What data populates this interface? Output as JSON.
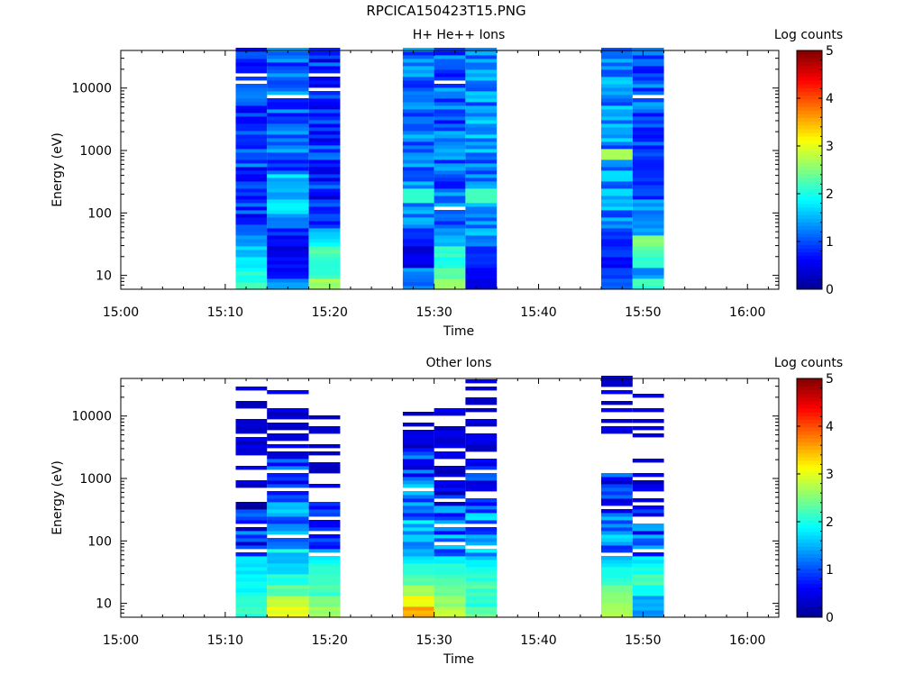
{
  "figure_title": "RPCICA150423T15.PNG",
  "colors": {
    "jet": [
      "#00008f",
      "#0000ff",
      "#0080ff",
      "#00ffff",
      "#80ff80",
      "#ffff00",
      "#ff8000",
      "#ff0000",
      "#800000"
    ]
  },
  "chart_data": [
    {
      "type": "heatmap",
      "title": "H+ He++ Ions",
      "xlabel": "Time",
      "ylabel": "Energy (eV)",
      "y_scale": "log",
      "ylim": [
        6,
        40000
      ],
      "xlim": [
        "15:00",
        "16:03"
      ],
      "x_ticks": [
        "15:00",
        "15:10",
        "15:20",
        "15:30",
        "15:40",
        "15:50",
        "16:00"
      ],
      "y_ticks": [
        "10",
        "100",
        "1000",
        "10000"
      ],
      "colorbar": {
        "label": "Log counts",
        "range": [
          0,
          5
        ],
        "ticks": [
          "0",
          "1",
          "2",
          "3",
          "4",
          "5"
        ]
      },
      "columns": [
        {
          "start": "15:11",
          "end": "15:14",
          "low": 0.9,
          "mid": 0.9,
          "bottom": [
            2.1,
            2.0,
            1.8,
            1.6,
            1.4,
            1.2
          ],
          "gaps": [
            12000,
            17000
          ]
        },
        {
          "start": "15:14",
          "end": "15:18",
          "low": 0.8,
          "mid": 1.1,
          "bottom": [
            1.3,
            0.7,
            0.6,
            0.5,
            0.6,
            0.8
          ],
          "gaps": [
            7500
          ]
        },
        {
          "start": "15:18",
          "end": "15:21",
          "low": 0.9,
          "mid": 0.8,
          "bottom": [
            2.6,
            2.1,
            2.0,
            2.2,
            1.8,
            1.5
          ],
          "gaps": [
            10000,
            16500,
            34000
          ]
        },
        {
          "start": "15:27",
          "end": "15:30",
          "low": 0.8,
          "mid": 1.2,
          "bottom": [
            1.2,
            1.3,
            0.5,
            0.4,
            0.8,
            0.9
          ],
          "gaps": [
            50
          ]
        },
        {
          "start": "15:30",
          "end": "15:33",
          "low": 1.0,
          "mid": 1.1,
          "bottom": [
            2.7,
            2.4,
            1.9,
            2.2,
            1.6,
            1.4
          ],
          "gaps": [
            13000,
            120
          ]
        },
        {
          "start": "15:33",
          "end": "15:36",
          "low": 0.9,
          "mid": 1.3,
          "bottom": [
            0.6,
            0.7,
            0.9,
            0.8,
            1.2,
            1.6
          ],
          "gaps": []
        },
        {
          "start": "15:46",
          "end": "15:49",
          "low": 1.1,
          "mid": 1.3,
          "bottom": [
            1.1,
            1.0,
            0.7,
            0.8,
            0.8,
            0.9
          ],
          "gaps": []
        },
        {
          "start": "15:49",
          "end": "15:52",
          "low": 0.8,
          "mid": 1.1,
          "bottom": [
            2.1,
            1.3,
            2.0,
            2.3,
            2.5,
            1.4
          ],
          "gaps": [
            7500
          ]
        }
      ]
    },
    {
      "type": "heatmap",
      "title": "Other Ions",
      "xlabel": "Time",
      "ylabel": "Energy (eV)",
      "y_scale": "log",
      "ylim": [
        6,
        40000
      ],
      "xlim": [
        "15:00",
        "16:03"
      ],
      "x_ticks": [
        "15:00",
        "15:10",
        "15:20",
        "15:30",
        "15:40",
        "15:50",
        "16:00"
      ],
      "y_ticks": [
        "10",
        "100",
        "1000",
        "10000"
      ],
      "colorbar": {
        "label": "Log counts",
        "range": [
          0,
          5
        ],
        "ticks": [
          "0",
          "1",
          "2",
          "3",
          "4",
          "5"
        ]
      },
      "columns": [
        {
          "start": "15:11",
          "end": "15:14",
          "top": 30000,
          "dense": 400,
          "low": 0.3,
          "bottom": [
            2.1,
            2.2,
            1.9,
            1.9,
            1.8,
            1.7,
            1.4
          ]
        },
        {
          "start": "15:14",
          "end": "15:18",
          "top": 25000,
          "dense": 2500,
          "low": 0.5,
          "bottom": [
            3.0,
            2.8,
            2.3,
            2.0,
            1.7,
            1.5,
            1.2
          ]
        },
        {
          "start": "15:18",
          "end": "15:21",
          "top": 15000,
          "dense": 400,
          "low": 0.4,
          "bottom": [
            2.6,
            2.4,
            2.2,
            2.1,
            2.0,
            1.8,
            1.6
          ]
        },
        {
          "start": "15:27",
          "end": "15:30",
          "top": 12000,
          "dense": 3000,
          "low": 0.5,
          "bottom": [
            3.5,
            3.1,
            2.7,
            2.3,
            2.0,
            1.7,
            1.4
          ]
        },
        {
          "start": "15:30",
          "end": "15:33",
          "top": 16000,
          "dense": 700,
          "low": 0.5,
          "bottom": [
            2.8,
            2.6,
            2.4,
            2.2,
            2.0,
            1.8,
            1.5
          ]
        },
        {
          "start": "15:33",
          "end": "15:36",
          "top": 40000,
          "dense": 2500,
          "low": 0.4,
          "bottom": [
            2.3,
            2.0,
            2.2,
            2.1,
            1.9,
            1.7,
            1.4
          ]
        },
        {
          "start": "15:46",
          "end": "15:49",
          "top": 40000,
          "dense": 1200,
          "low": 0.4,
          "bottom": [
            2.8,
            2.7,
            2.4,
            2.1,
            1.9,
            1.6,
            1.3
          ]
        },
        {
          "start": "15:49",
          "end": "15:52",
          "top": 20000,
          "dense": 500,
          "low": 0.4,
          "bottom": [
            1.4,
            1.5,
            1.9,
            2.2,
            2.0,
            1.8,
            1.5
          ]
        }
      ]
    }
  ]
}
